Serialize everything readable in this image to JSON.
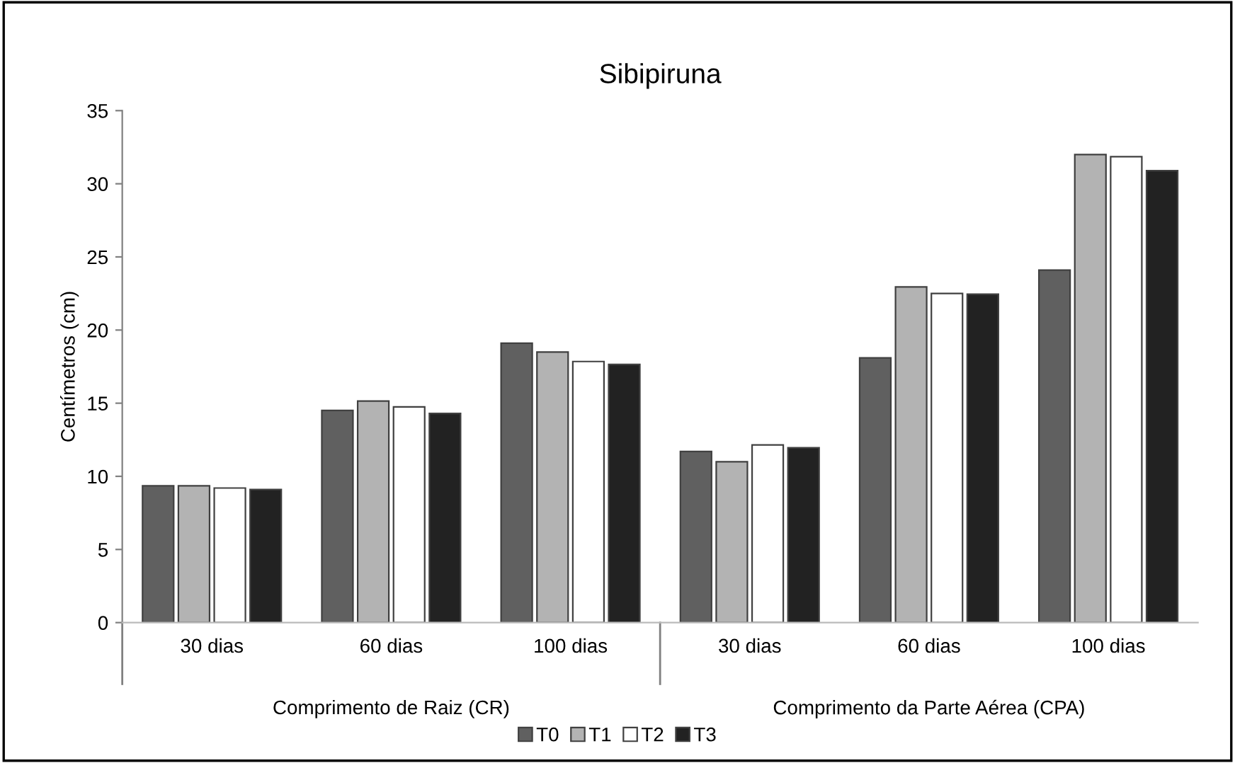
{
  "chart_data": {
    "type": "bar",
    "title": "Sibipiruna",
    "ylabel": "Centímetros (cm)",
    "categories": [
      "30 dias",
      "60 dias",
      "100 dias",
      "30 dias",
      "60 dias",
      "100 dias"
    ],
    "annotations": [
      "Comprimento de Raiz (CR)",
      "Comprimento da Parte Aérea (CPA)"
    ],
    "series": [
      {
        "name": "T0",
        "color": "#606060",
        "values": [
          9.35,
          14.5,
          19.1,
          11.7,
          18.1,
          24.1
        ]
      },
      {
        "name": "T1",
        "color": "#b3b3b3",
        "values": [
          9.35,
          15.15,
          18.5,
          11.0,
          22.95,
          32.0
        ]
      },
      {
        "name": "T2",
        "color": "#ffffff",
        "values": [
          9.2,
          14.75,
          17.85,
          12.15,
          22.5,
          31.85
        ]
      },
      {
        "name": "T3",
        "color": "#222222",
        "values": [
          9.1,
          14.3,
          17.65,
          11.95,
          22.45,
          30.9
        ]
      }
    ],
    "ylim": [
      0,
      35
    ],
    "yticks": [
      0,
      5,
      10,
      15,
      20,
      25,
      30,
      35
    ],
    "grid": false,
    "legend": "bottom"
  }
}
